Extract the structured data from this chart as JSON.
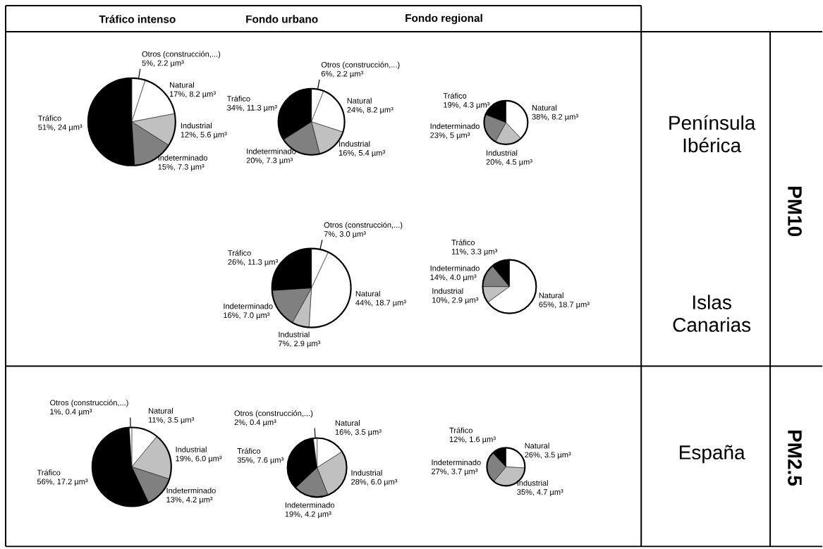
{
  "chart_data": [
    {
      "type": "other",
      "annotations": [
        "Tráfico intenso",
        "Fondo urbano",
        "Fondo regional",
        "Península Ibérica",
        "Islas Canarias",
        "España",
        "PM10",
        "PM2.5"
      ]
    },
    {
      "type": "pie",
      "categories": [
        "Otros (construcción,...)",
        "Natural",
        "Industrial",
        "Indeterminado",
        "Tráfico"
      ],
      "values": [
        5,
        17,
        12,
        15,
        51
      ],
      "colors": [
        "#ffffff",
        "#ffffff",
        "#c0c0c0",
        "#808080",
        "#000000"
      ],
      "value_labels": [
        "5%, 2.2 µm³",
        "17%, 8.2 µm³",
        "12%, 5.6 µm³",
        "15%, 7.3 µm³",
        "51%, 24 µm³"
      ]
    },
    {
      "type": "pie",
      "categories": [
        "Otros (construcción,...)",
        "Natural",
        "Industrial",
        "Indeterminado",
        "Tráfico"
      ],
      "values": [
        6,
        24,
        16,
        20,
        34
      ],
      "colors": [
        "#ffffff",
        "#ffffff",
        "#c0c0c0",
        "#808080",
        "#000000"
      ],
      "value_labels": [
        "6%, 2.2 µm³",
        "24%, 8.2 µm³",
        "16%, 5.4 µm³",
        "20%, 7.3 µm³",
        "34%, 11.3 µm³"
      ]
    },
    {
      "type": "pie",
      "categories": [
        "Natural",
        "Industrial",
        "Indeterminado",
        "Tráfico"
      ],
      "values": [
        38,
        20,
        23,
        19
      ],
      "colors": [
        "#ffffff",
        "#c0c0c0",
        "#808080",
        "#000000"
      ],
      "value_labels": [
        "38%, 8.2 µm³",
        "20%, 4.5 µm³",
        "23%, 5 µm³",
        "19%, 4.3 µm³"
      ]
    },
    {
      "type": "pie",
      "categories": [
        "Otros (construcción,...)",
        "Natural",
        "Industrial",
        "Indeterminado",
        "Tráfico"
      ],
      "values": [
        7,
        44,
        7,
        16,
        26
      ],
      "colors": [
        "#ffffff",
        "#ffffff",
        "#c0c0c0",
        "#808080",
        "#000000"
      ],
      "value_labels": [
        "7%, 3.0 µm³",
        "44%, 18.7 µm³",
        "7%, 2.9 µm³",
        "16%, 7.0 µm³",
        "26%, 11.3 µm³"
      ]
    },
    {
      "type": "pie",
      "categories": [
        "Natural",
        "Industrial",
        "Indeterminado",
        "Tráfico"
      ],
      "values": [
        65,
        10,
        14,
        11
      ],
      "colors": [
        "#ffffff",
        "#c0c0c0",
        "#808080",
        "#000000"
      ],
      "value_labels": [
        "65%, 18.7 µm³",
        "10%, 2.9 µm³",
        "14%, 4.0 µm³",
        "11%, 3.3 µm³"
      ]
    },
    {
      "type": "pie",
      "categories": [
        "Natural",
        "Industrial",
        "Indeterminado",
        "Tráfico",
        "Otros (construcción,...)"
      ],
      "values": [
        11,
        19,
        13,
        56,
        1
      ],
      "colors": [
        "#ffffff",
        "#c0c0c0",
        "#808080",
        "#000000",
        "#ffffff"
      ],
      "value_labels": [
        "11%, 3.5 µm³",
        "19%, 6.0 µm³",
        "13%, 4.2 µm³",
        "56%, 17.2 µm³",
        "1%, 0.4 µm³"
      ]
    },
    {
      "type": "pie",
      "categories": [
        "Natural",
        "Industrial",
        "Indeterminado",
        "Tráfico",
        "Otros (construcción,...)"
      ],
      "values": [
        16,
        28,
        19,
        35,
        2
      ],
      "colors": [
        "#ffffff",
        "#c0c0c0",
        "#808080",
        "#000000",
        "#ffffff"
      ],
      "value_labels": [
        "16%, 3.5 µm³",
        "28%, 6.0 µm³",
        "19%, 4.2 µm³",
        "35%, 7.6 µm³",
        "2%, 0.4 µm³"
      ]
    },
    {
      "type": "pie",
      "categories": [
        "Natural",
        "Industrial",
        "Indeterminado",
        "Tráfico"
      ],
      "values": [
        26,
        35,
        27,
        12
      ],
      "colors": [
        "#ffffff",
        "#c0c0c0",
        "#808080",
        "#000000"
      ],
      "value_labels": [
        "26%, 3.5 µm³",
        "35%, 4.7 µm³",
        "27%, 3.7 µm³",
        "12%, 1.6 µm³"
      ]
    }
  ]
}
